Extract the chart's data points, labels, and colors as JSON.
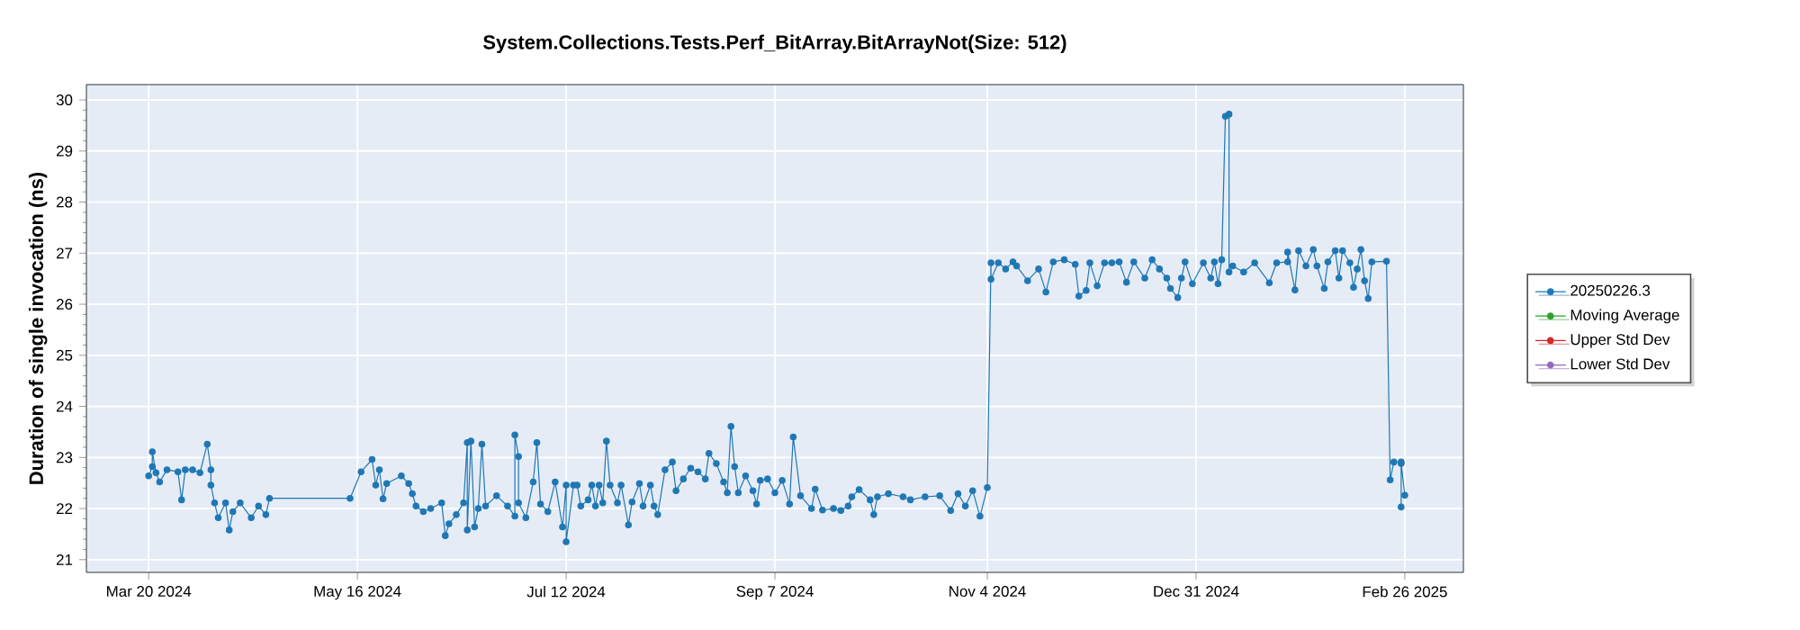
{
  "chart_data": {
    "type": "line",
    "title": "System.Collections.Tests.Perf_BitArray.BitArrayNot(Size: 512)",
    "ylabel": "Duration of single invocation (ns)",
    "xlim": [
      "2024-03-03",
      "2025-03-14"
    ],
    "ylim": [
      20.75,
      30.3
    ],
    "xticks": [
      {
        "value": "2024-03-20",
        "label": "Mar 20 2024"
      },
      {
        "value": "2024-05-16",
        "label": "May 16 2024"
      },
      {
        "value": "2024-07-12",
        "label": "Jul 12 2024"
      },
      {
        "value": "2024-09-07",
        "label": "Sep 7 2024"
      },
      {
        "value": "2024-11-04",
        "label": "Nov 4 2024"
      },
      {
        "value": "2024-12-31",
        "label": "Dec 31 2024"
      },
      {
        "value": "2025-02-26",
        "label": "Feb 26 2025"
      }
    ],
    "yticks": [
      21,
      22,
      23,
      24,
      25,
      26,
      27,
      28,
      29,
      30
    ],
    "grid": true,
    "legend": "right",
    "marker": "circle",
    "line_style": "solid",
    "series": [
      {
        "name": "20250226.3",
        "color": "#1f77b4",
        "x": [
          "2024-03-20",
          "2024-03-21",
          "2024-03-21",
          "2024-03-22",
          "2024-03-23",
          "2024-03-25",
          "2024-03-28",
          "2024-03-29",
          "2024-03-30",
          "2024-04-01",
          "2024-04-03",
          "2024-04-05",
          "2024-04-06",
          "2024-04-06",
          "2024-04-07",
          "2024-04-08",
          "2024-04-10",
          "2024-04-11",
          "2024-04-12",
          "2024-04-14",
          "2024-04-17",
          "2024-04-19",
          "2024-04-21",
          "2024-04-22",
          "2024-05-14",
          "2024-05-17",
          "2024-05-20",
          "2024-05-21",
          "2024-05-22",
          "2024-05-23",
          "2024-05-24",
          "2024-05-28",
          "2024-05-30",
          "2024-05-31",
          "2024-06-01",
          "2024-06-03",
          "2024-06-05",
          "2024-06-08",
          "2024-06-09",
          "2024-06-10",
          "2024-06-12",
          "2024-06-14",
          "2024-06-15",
          "2024-06-15",
          "2024-06-16",
          "2024-06-17",
          "2024-06-18",
          "2024-06-19",
          "2024-06-20",
          "2024-06-23",
          "2024-06-26",
          "2024-06-28",
          "2024-06-28",
          "2024-06-29",
          "2024-06-29",
          "2024-07-01",
          "2024-07-03",
          "2024-07-04",
          "2024-07-05",
          "2024-07-07",
          "2024-07-09",
          "2024-07-11",
          "2024-07-12",
          "2024-07-12",
          "2024-07-14",
          "2024-07-15",
          "2024-07-16",
          "2024-07-18",
          "2024-07-19",
          "2024-07-20",
          "2024-07-21",
          "2024-07-22",
          "2024-07-23",
          "2024-07-24",
          "2024-07-26",
          "2024-07-27",
          "2024-07-29",
          "2024-07-30",
          "2024-08-01",
          "2024-08-02",
          "2024-08-04",
          "2024-08-05",
          "2024-08-06",
          "2024-08-08",
          "2024-08-10",
          "2024-08-11",
          "2024-08-13",
          "2024-08-15",
          "2024-08-17",
          "2024-08-19",
          "2024-08-20",
          "2024-08-22",
          "2024-08-24",
          "2024-08-25",
          "2024-08-26",
          "2024-08-27",
          "2024-08-28",
          "2024-08-30",
          "2024-09-01",
          "2024-09-02",
          "2024-09-03",
          "2024-09-05",
          "2024-09-07",
          "2024-09-09",
          "2024-09-11",
          "2024-09-12",
          "2024-09-14",
          "2024-09-17",
          "2024-09-18",
          "2024-09-20",
          "2024-09-23",
          "2024-09-25",
          "2024-09-27",
          "2024-09-28",
          "2024-09-30",
          "2024-10-03",
          "2024-10-04",
          "2024-10-05",
          "2024-10-08",
          "2024-10-12",
          "2024-10-14",
          "2024-10-18",
          "2024-10-22",
          "2024-10-25",
          "2024-10-27",
          "2024-10-29",
          "2024-10-31",
          "2024-11-02",
          "2024-11-04",
          "2024-11-05",
          "2024-11-05",
          "2024-11-07",
          "2024-11-09",
          "2024-11-11",
          "2024-11-12",
          "2024-11-15",
          "2024-11-18",
          "2024-11-20",
          "2024-11-22",
          "2024-11-25",
          "2024-11-28",
          "2024-11-29",
          "2024-12-01",
          "2024-12-02",
          "2024-12-04",
          "2024-12-06",
          "2024-12-08",
          "2024-12-10",
          "2024-12-12",
          "2024-12-14",
          "2024-12-17",
          "2024-12-19",
          "2024-12-21",
          "2024-12-23",
          "2024-12-24",
          "2024-12-26",
          "2024-12-27",
          "2024-12-28",
          "2024-12-30",
          "2025-01-02",
          "2025-01-04",
          "2025-01-05",
          "2025-01-06",
          "2025-01-07",
          "2025-01-08",
          "2025-01-09",
          "2025-01-09",
          "2025-01-10",
          "2025-01-13",
          "2025-01-16",
          "2025-01-20",
          "2025-01-22",
          "2025-01-25",
          "2025-01-25",
          "2025-01-27",
          "2025-01-28",
          "2025-01-30",
          "2025-02-01",
          "2025-02-02",
          "2025-02-04",
          "2025-02-05",
          "2025-02-07",
          "2025-02-08",
          "2025-02-09",
          "2025-02-11",
          "2025-02-12",
          "2025-02-13",
          "2025-02-14",
          "2025-02-15",
          "2025-02-16",
          "2025-02-17",
          "2025-02-21",
          "2025-02-22",
          "2025-02-23",
          "2025-02-25",
          "2025-02-25",
          "2025-02-25",
          "2025-02-26"
        ],
        "values": [
          22.64,
          22.82,
          23.11,
          22.7,
          22.52,
          22.76,
          22.72,
          22.17,
          22.76,
          22.76,
          22.7,
          23.26,
          22.76,
          22.46,
          22.11,
          21.82,
          22.11,
          21.58,
          21.94,
          22.11,
          21.82,
          22.05,
          21.88,
          22.2,
          22.2,
          22.72,
          22.96,
          22.46,
          22.76,
          22.19,
          22.49,
          22.64,
          22.49,
          22.29,
          22.05,
          21.94,
          22.0,
          22.11,
          21.47,
          21.7,
          21.88,
          22.11,
          23.29,
          21.58,
          23.32,
          21.64,
          22.0,
          23.26,
          22.05,
          22.25,
          22.05,
          21.85,
          23.44,
          23.02,
          22.11,
          21.82,
          22.52,
          23.29,
          22.09,
          21.94,
          22.52,
          21.64,
          22.46,
          21.35,
          22.46,
          22.46,
          22.05,
          22.17,
          22.46,
          22.05,
          22.46,
          22.11,
          23.32,
          22.46,
          22.11,
          22.46,
          21.68,
          22.13,
          22.49,
          22.05,
          22.46,
          22.05,
          21.88,
          22.76,
          22.91,
          22.35,
          22.58,
          22.79,
          22.72,
          22.58,
          23.08,
          22.88,
          22.52,
          22.31,
          23.61,
          22.82,
          22.31,
          22.64,
          22.35,
          22.09,
          22.55,
          22.58,
          22.31,
          22.55,
          22.09,
          23.4,
          22.25,
          22.0,
          22.38,
          21.97,
          22.0,
          21.96,
          22.05,
          22.23,
          22.37,
          22.17,
          21.88,
          22.23,
          22.29,
          22.23,
          22.17,
          22.23,
          22.25,
          21.96,
          22.29,
          22.05,
          22.35,
          21.85,
          22.41,
          26.81,
          26.49,
          26.81,
          26.69,
          26.83,
          26.75,
          26.46,
          26.69,
          26.24,
          26.83,
          26.87,
          26.78,
          26.16,
          26.27,
          26.81,
          26.36,
          26.81,
          26.81,
          26.83,
          26.43,
          26.83,
          26.51,
          26.87,
          26.69,
          26.51,
          26.31,
          26.13,
          26.51,
          26.83,
          26.4,
          26.81,
          26.51,
          26.83,
          26.4,
          26.87,
          29.68,
          29.72,
          26.63,
          26.75,
          26.63,
          26.81,
          26.42,
          26.81,
          26.83,
          27.02,
          26.28,
          27.05,
          26.75,
          27.07,
          26.75,
          26.31,
          26.83,
          27.05,
          26.51,
          27.05,
          26.81,
          26.33,
          26.69,
          27.07,
          26.46,
          26.11,
          26.83,
          26.84,
          22.56,
          22.91,
          22.91,
          22.03,
          22.88,
          22.26
        ]
      },
      {
        "name": "Moving Average",
        "color": "#2ca02c"
      },
      {
        "name": "Upper Std Dev",
        "color": "#d62728"
      },
      {
        "name": "Lower Std Dev",
        "color": "#9467bd"
      }
    ]
  }
}
